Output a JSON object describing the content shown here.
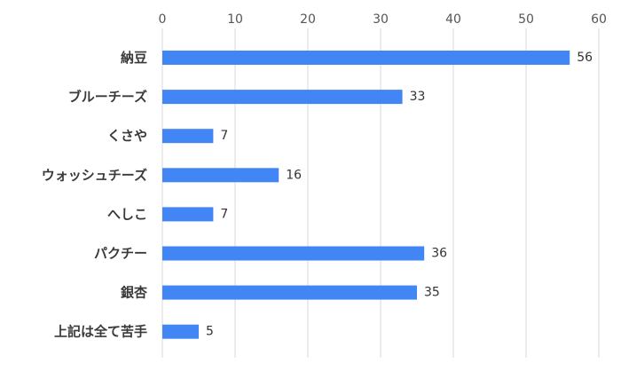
{
  "chart_data": {
    "type": "bar",
    "orientation": "horizontal",
    "categories": [
      "納豆",
      "ブルーチーズ",
      "くさや",
      "ウォッシュチーズ",
      "へしこ",
      "パクチー",
      "銀杏",
      "上記は全て苦手"
    ],
    "values": [
      56,
      33,
      7,
      16,
      7,
      36,
      35,
      5
    ],
    "xlim": [
      0,
      60
    ],
    "xticks": [
      0,
      10,
      20,
      30,
      40,
      50,
      60
    ],
    "x_axis_position": "top",
    "grid": true,
    "data_labels": true,
    "bar_color": "#4285f4",
    "grid_color": "#d9d9d9",
    "title": "",
    "xlabel": "",
    "ylabel": ""
  }
}
